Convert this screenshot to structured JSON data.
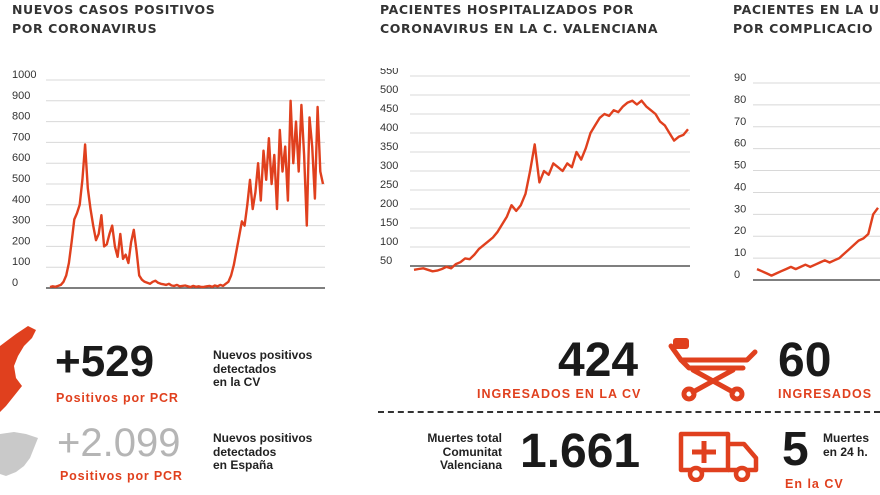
{
  "accent": "#e0401e",
  "charts": {
    "c1": {
      "title_line1": "NUEVOS CASOS POSITIVOS",
      "title_line2": "POR CORONAVIRUS"
    },
    "c2": {
      "title_line1": "PACIENTES HOSPITALIZADOS POR",
      "title_line2": "CORONAVIRUS EN LA C. VALENCIANA"
    },
    "c3": {
      "title_line1": "PACIENTES EN LA U",
      "title_line2": "POR COMPLICACIO"
    }
  },
  "chart_data": [
    {
      "type": "line",
      "title": "NUEVOS CASOS POSITIVOS POR CORONAVIRUS",
      "yticks": [
        "1000",
        "900",
        "800",
        "700",
        "600",
        "500",
        "400",
        "300",
        "200",
        "100",
        "0"
      ],
      "ylim": [
        0,
        1000
      ],
      "values": [
        5,
        8,
        6,
        10,
        15,
        30,
        60,
        120,
        220,
        330,
        360,
        400,
        520,
        690,
        480,
        380,
        300,
        230,
        260,
        350,
        200,
        210,
        260,
        300,
        200,
        150,
        260,
        140,
        160,
        120,
        220,
        280,
        180,
        60,
        40,
        30,
        25,
        20,
        30,
        35,
        25,
        20,
        18,
        15,
        20,
        12,
        10,
        15,
        8,
        10,
        12,
        8,
        5,
        10,
        6,
        8,
        5,
        6,
        8,
        10,
        6,
        12,
        8,
        15,
        10,
        20,
        30,
        60,
        110,
        180,
        250,
        320,
        300,
        400,
        520,
        380,
        460,
        600,
        420,
        660,
        520,
        720,
        500,
        640,
        380,
        760,
        560,
        680,
        420,
        900,
        600,
        800,
        560,
        880,
        640,
        300,
        820,
        680,
        430,
        870,
        560,
        500
      ],
      "grid": true
    },
    {
      "type": "line",
      "title": "PACIENTES HOSPITALIZADOS POR CORONAVIRUS EN LA C. VALENCIANA",
      "yticks": [
        "550",
        "500",
        "450",
        "400",
        "350",
        "300",
        "250",
        "200",
        "150",
        "100",
        "50"
      ],
      "ylim": [
        25,
        550
      ],
      "values": [
        40,
        42,
        44,
        40,
        36,
        38,
        42,
        48,
        44,
        55,
        60,
        70,
        68,
        80,
        95,
        105,
        115,
        125,
        140,
        160,
        180,
        210,
        195,
        210,
        240,
        300,
        370,
        270,
        300,
        290,
        320,
        310,
        300,
        320,
        310,
        350,
        330,
        360,
        400,
        420,
        440,
        450,
        445,
        460,
        455,
        470,
        480,
        485,
        475,
        485,
        470,
        460,
        450,
        430,
        420,
        400,
        380,
        390,
        395,
        410
      ],
      "grid": true
    },
    {
      "type": "line",
      "title": "PACIENTES EN LA U POR COMPLICACIO",
      "yticks": [
        "90",
        "80",
        "70",
        "60",
        "50",
        "40",
        "30",
        "20",
        "10",
        "0"
      ],
      "ylim": [
        0,
        90
      ],
      "values": [
        5,
        4,
        3,
        2,
        3,
        4,
        5,
        6,
        5,
        6,
        7,
        6,
        7,
        8,
        9,
        8,
        9,
        10,
        12,
        14,
        16,
        18,
        19,
        21,
        30,
        33
      ],
      "grid": true
    }
  ],
  "stats": {
    "pos_cv": {
      "value": "+529",
      "red_label": "Positivos por PCR",
      "desc_1": "Nuevos positivos",
      "desc_2": "detectados",
      "desc_3": "en la CV"
    },
    "pos_es": {
      "value": "+2.099",
      "red_label": "Positivos por PCR",
      "desc_1": "Nuevos positivos",
      "desc_2": "detectados",
      "desc_3": "en España"
    },
    "ingresados": {
      "value": "424",
      "red_label": "INGRESADOS EN LA CV"
    },
    "uci": {
      "value": "60",
      "red_label": "INGRESADOS"
    },
    "muertes": {
      "desc_1": "Muertes total",
      "desc_2": "Comunitat",
      "desc_3": "Valenciana",
      "value": "1.661"
    },
    "muertes24": {
      "value": "5",
      "desc_1": "Muertes",
      "desc_2": "en 24 h.",
      "red_label": "En la CV"
    }
  },
  "icons": [
    "valencia-map-icon",
    "spain-map-icon",
    "stretcher-icon",
    "ambulance-icon"
  ]
}
